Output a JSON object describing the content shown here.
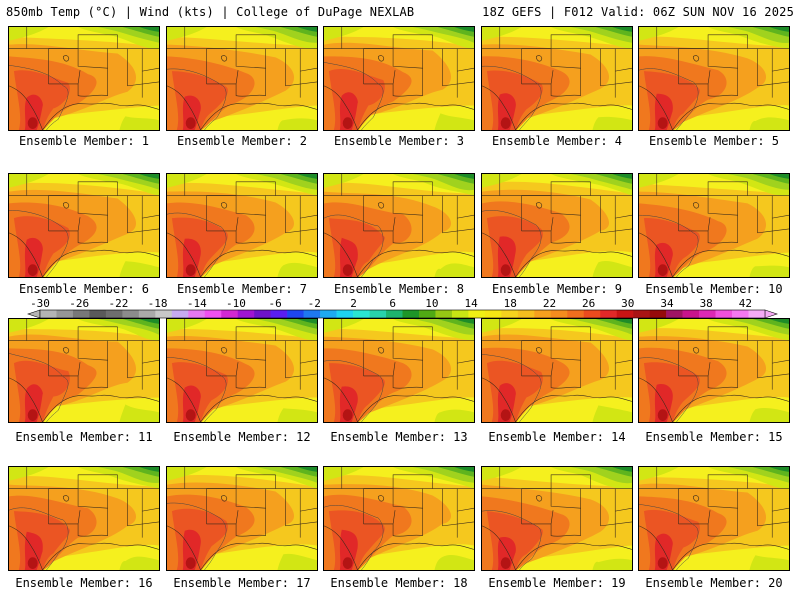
{
  "header": {
    "left": "850mb Temp (°C) | Wind (kts) | College of DuPage NEXLAB",
    "right": "18Z GEFS | F012 Valid: 06Z SUN NOV 16 2025"
  },
  "panels": [
    {
      "member": 1,
      "caption": "Ensemble Member: 1"
    },
    {
      "member": 2,
      "caption": "Ensemble Member: 2"
    },
    {
      "member": 3,
      "caption": "Ensemble Member: 3"
    },
    {
      "member": 4,
      "caption": "Ensemble Member: 4"
    },
    {
      "member": 5,
      "caption": "Ensemble Member: 5"
    },
    {
      "member": 6,
      "caption": "Ensemble Member: 6"
    },
    {
      "member": 7,
      "caption": "Ensemble Member: 7"
    },
    {
      "member": 8,
      "caption": "Ensemble Member: 8"
    },
    {
      "member": 9,
      "caption": "Ensemble Member: 9"
    },
    {
      "member": 10,
      "caption": "Ensemble Member: 10"
    },
    {
      "member": 11,
      "caption": "Ensemble Member: 11"
    },
    {
      "member": 12,
      "caption": "Ensemble Member: 12"
    },
    {
      "member": 13,
      "caption": "Ensemble Member: 13"
    },
    {
      "member": 14,
      "caption": "Ensemble Member: 14"
    },
    {
      "member": 15,
      "caption": "Ensemble Member: 15"
    },
    {
      "member": 16,
      "caption": "Ensemble Member: 16"
    },
    {
      "member": 17,
      "caption": "Ensemble Member: 17"
    },
    {
      "member": 18,
      "caption": "Ensemble Member: 18"
    },
    {
      "member": 19,
      "caption": "Ensemble Member: 19"
    },
    {
      "member": 20,
      "caption": "Ensemble Member: 20"
    }
  ],
  "colorbar": {
    "labels": [
      "-30",
      "-26",
      "-22",
      "-18",
      "-14",
      "-10",
      "-6",
      "-2",
      "2",
      "6",
      "10",
      "14",
      "18",
      "22",
      "26",
      "30",
      "34",
      "38",
      "42"
    ],
    "colors": [
      "#b4b4b4",
      "#969696",
      "#787878",
      "#5a5a5a",
      "#6e6e6e",
      "#8c8c8c",
      "#aaaaaa",
      "#c8c8c8",
      "#c8aaf0",
      "#e678f0",
      "#f050f0",
      "#d228d2",
      "#a014d2",
      "#6e14c8",
      "#5a1ef0",
      "#1e46f0",
      "#1e78f0",
      "#1eaaf0",
      "#1ed2f0",
      "#2ae6d2",
      "#28d2aa",
      "#1eb46e",
      "#1e9628",
      "#50aa14",
      "#96c814",
      "#c8e614",
      "#f0f014",
      "#f5e614",
      "#f5d21e",
      "#f5be1e",
      "#f5a01e",
      "#f58c1e",
      "#f06e1e",
      "#eb4b1e",
      "#e12828",
      "#c81414",
      "#aa1414",
      "#960a0a",
      "#a01464",
      "#c8148c",
      "#dc28b4",
      "#f050dc",
      "#f578f0",
      "#f5aaf5"
    ]
  },
  "colors": {
    "green_dark": "#1e8c28",
    "green": "#5fb41e",
    "green_light": "#a0d21e",
    "yellow_green": "#d2e614",
    "yellow": "#f5f01e",
    "gold": "#f5c81e",
    "orange": "#f5a01e",
    "orange_dark": "#f0781e",
    "red_orange": "#eb5523",
    "red": "#e12828",
    "dark_red": "#b41414"
  }
}
